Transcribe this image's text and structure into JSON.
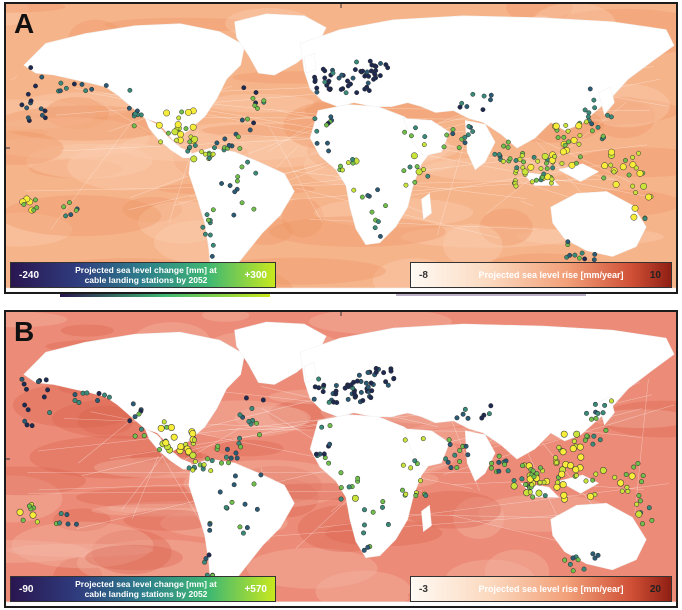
{
  "panels": [
    {
      "letter": "A",
      "ocean_base": "#f6b48b",
      "ocean_dark": "#ee9463",
      "ocean_light": "#fbd2b4",
      "left_legend": {
        "min": "-240",
        "max": "+300",
        "title_line1": "Projected sea level change [mm] at",
        "title_line2": "cable landing stations by 2052",
        "color_low": "#2a1650",
        "color_high": "#c8e81e"
      },
      "right_legend": {
        "min": "-8",
        "max": "10",
        "title": "Projected sea level rise [mm/year]",
        "color_low": "#fffaf4",
        "color_high": "#8f1f14"
      }
    },
    {
      "letter": "B",
      "ocean_base": "#ec8c78",
      "ocean_dark": "#d9604c",
      "ocean_light": "#f6bba9",
      "left_legend": {
        "min": "-90",
        "max": "+570",
        "title_line1": "Projected sea level change [mm] at",
        "title_line2": "cable landing stations by 2052",
        "color_low": "#2a1650",
        "color_high": "#c8e81e"
      },
      "right_legend": {
        "min": "-3",
        "max": "20",
        "title": "Projected sea level rise [mm/year]",
        "color_low": "#fffaf4",
        "color_high": "#8f1f14"
      }
    }
  ],
  "marker_colors": [
    "#1f2a52",
    "#2b5b74",
    "#3a8a7a",
    "#6fbf4a",
    "#c9e33a",
    "#f7ec3a"
  ]
}
